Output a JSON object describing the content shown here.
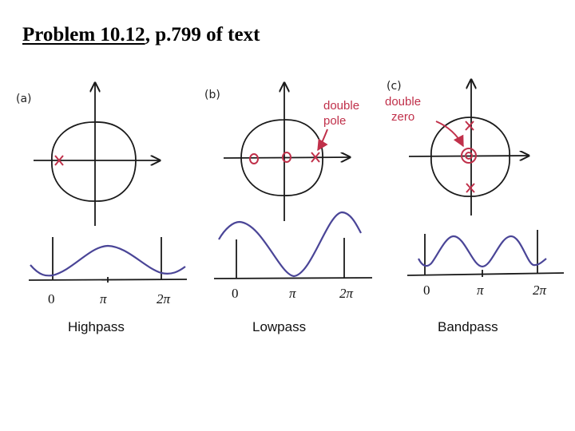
{
  "title": {
    "main": "Problem 10.12",
    "rest": ", p.799 of text"
  },
  "colors": {
    "ink": "#1a1a1a",
    "marker": "#c0304a",
    "curve": "#4a4597"
  },
  "panels": [
    {
      "label": "(a)",
      "caption": "Highpass",
      "ticks": [
        "0",
        "π",
        "2π"
      ]
    },
    {
      "label": "(b)",
      "caption": "Lowpass",
      "ticks": [
        "0",
        "π",
        "2π"
      ],
      "annotation": [
        "double",
        "pole"
      ]
    },
    {
      "label": "(c)",
      "caption": "Bandpass",
      "ticks": [
        "0",
        "π",
        "2π"
      ],
      "annotation": [
        "double",
        "zero"
      ]
    }
  ]
}
